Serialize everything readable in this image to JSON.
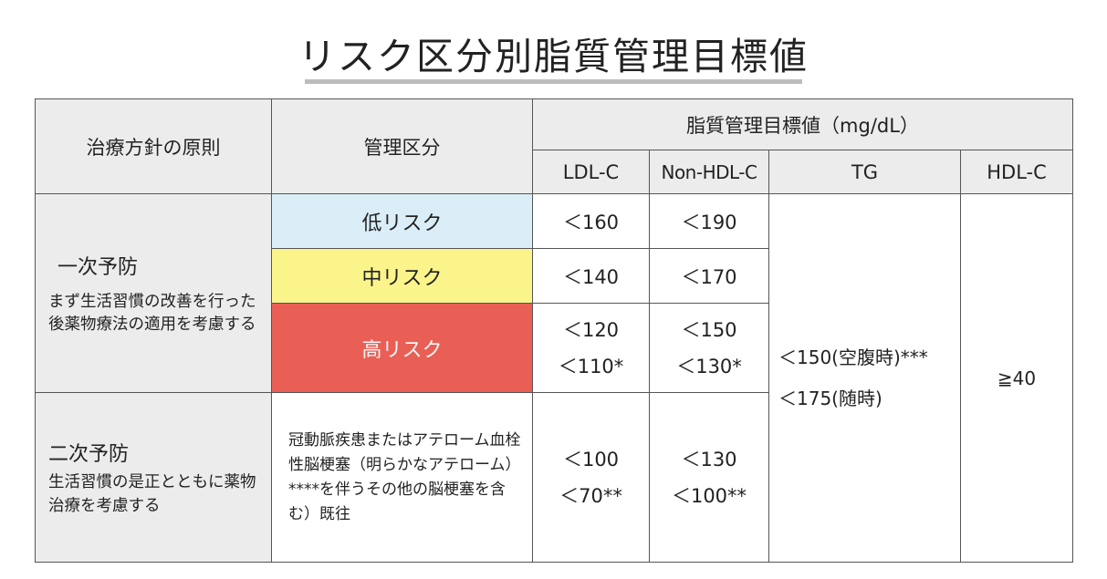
{
  "title": "リスク区分別脂質管理目標値",
  "headers": {
    "principle": "治療方針の原則",
    "category": "管理区分",
    "target_group": "脂質管理目標値（mg/dL）",
    "ldl": "LDL-C",
    "nonhdl": "Non-HDL-C",
    "tg": "TG",
    "hdl": "HDL-C"
  },
  "primary": {
    "title": "一次予防",
    "description": "まず生活習慣の改善を行った後薬物療法の適用を考慮する",
    "rows": [
      {
        "category": "低リスク",
        "ldl": [
          "＜160"
        ],
        "nonhdl": [
          "＜190"
        ]
      },
      {
        "category": "中リスク",
        "ldl": [
          "＜140"
        ],
        "nonhdl": [
          "＜170"
        ]
      },
      {
        "category": "高リスク",
        "ldl": [
          "＜120",
          "＜110*"
        ],
        "nonhdl": [
          "＜150",
          "＜130*"
        ]
      }
    ]
  },
  "secondary": {
    "title": "二次予防",
    "description": "生活習慣の是正とともに薬物治療を考慮する",
    "category": "冠動脈疾患またはアテローム血栓性脳梗塞（明らかなアテローム）****を伴うその他の脳梗塞を含む）既往",
    "ldl": [
      "＜100",
      "＜70**"
    ],
    "nonhdl": [
      "＜130",
      "＜100**"
    ]
  },
  "tg_values": [
    "＜150(空腹時)***",
    "＜175(随時)"
  ],
  "hdl_value": "≧40",
  "colors": {
    "low_risk": "#dbeef7",
    "mid_risk": "#fbf48a",
    "high_risk": "#e95f55",
    "header_bg": "#ececec"
  }
}
